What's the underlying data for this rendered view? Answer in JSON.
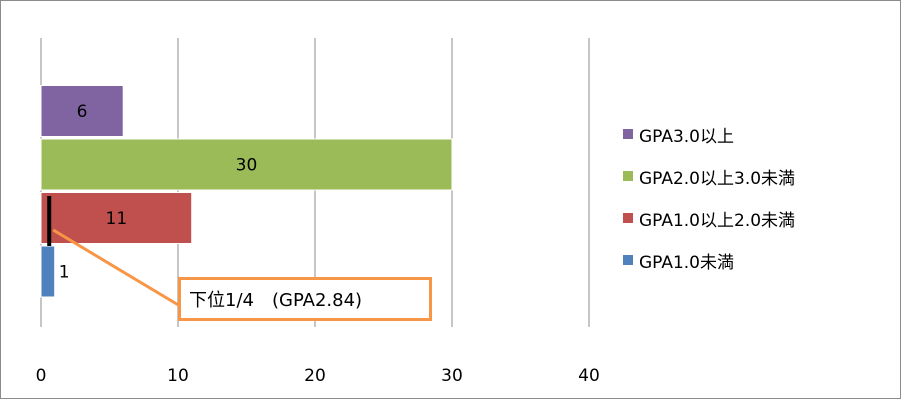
{
  "chart_data": {
    "type": "bar",
    "orientation": "horizontal",
    "stacked": false,
    "categories": [
      "GPA1.0未満",
      "GPA1.0以上2.0未満",
      "GPA2.0以上3.0未満",
      "GPA3.0以上"
    ],
    "series": [
      {
        "name": "GPA1.0未満",
        "value": 1,
        "color": "#4f81bd"
      },
      {
        "name": "GPA1.0以上2.0未満",
        "value": 11,
        "color": "#c0504d"
      },
      {
        "name": "GPA2.0以上3.0未満",
        "value": 30,
        "color": "#9bbb59"
      },
      {
        "name": "GPA3.0以上",
        "value": 6,
        "color": "#8064a2"
      }
    ],
    "xlim": [
      0,
      40
    ],
    "xticks": [
      "0",
      "10",
      "20",
      "30",
      "40"
    ],
    "grid": "vertical",
    "legend_position": "right",
    "annotation": {
      "text": "下位1/4　(GPA2.84)",
      "marker_value": 0.6,
      "color": "#f79646"
    }
  }
}
